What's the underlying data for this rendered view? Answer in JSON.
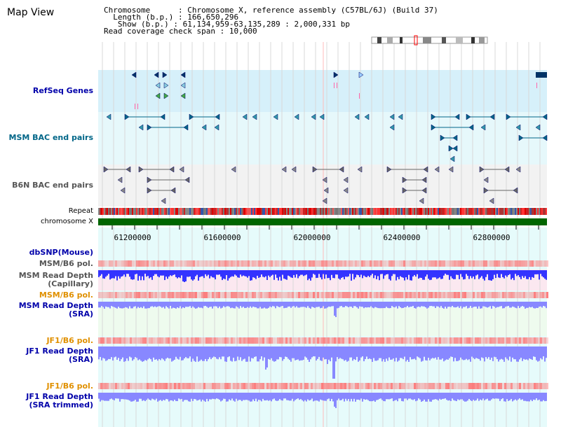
{
  "title": "Map View",
  "info": {
    "chromosome_key": "Chromosome",
    "chromosome_val": "Chromosome X, reference assembly (C57BL/6J) (Build 37)",
    "length_key": "Length (b.p.)",
    "length_val": "166,650,296",
    "show_key": "Show (b.p.)",
    "show_val": "61,134,959-63,135,289 : 2,000,331 bp",
    "span_key": "Read coverage check span",
    "span_val": "10,000"
  },
  "tracks": {
    "refseq": "RefSeq Genes",
    "msm_bac": "MSM BAC end pairs",
    "b6n_bac": "B6N BAC end pairs",
    "repeat": "Repeat",
    "chromosome": "chromosome X",
    "dbsnp": "dbSNP(Mouse)",
    "msm_b6_pol_1": "MSM/B6 pol.",
    "msm_depth_cap_1": "MSM Read Depth",
    "msm_depth_cap_2": "(Capillary)",
    "msm_b6_pol_2": "MSM/B6 pol.",
    "msm_depth_sra_1": "MSM Read Depth",
    "msm_depth_sra_2": "(SRA)",
    "jf1_b6_pol_1": "JF1/B6 pol.",
    "jf1_depth_sra_1": "JF1 Read Depth",
    "jf1_depth_sra_2": "(SRA)",
    "jf1_b6_pol_2": "JF1/B6 pol.",
    "jf1_depth_trim_1": "JF1 Read Depth",
    "jf1_depth_trim_2": "(SRA trimmed)"
  },
  "axis": {
    "ticks": [
      "61200000",
      "61600000",
      "62000000",
      "62400000",
      "62800000"
    ]
  },
  "colors": {
    "panel_blue": "#d6f0fa",
    "panel_lightblue": "#e6f8fb",
    "panel_gray": "#f2f2f2",
    "chromosome": "#006600",
    "depth_blue": "#3333ff",
    "depth_light": "#8888ff",
    "pol_red": "#ff6666"
  }
}
